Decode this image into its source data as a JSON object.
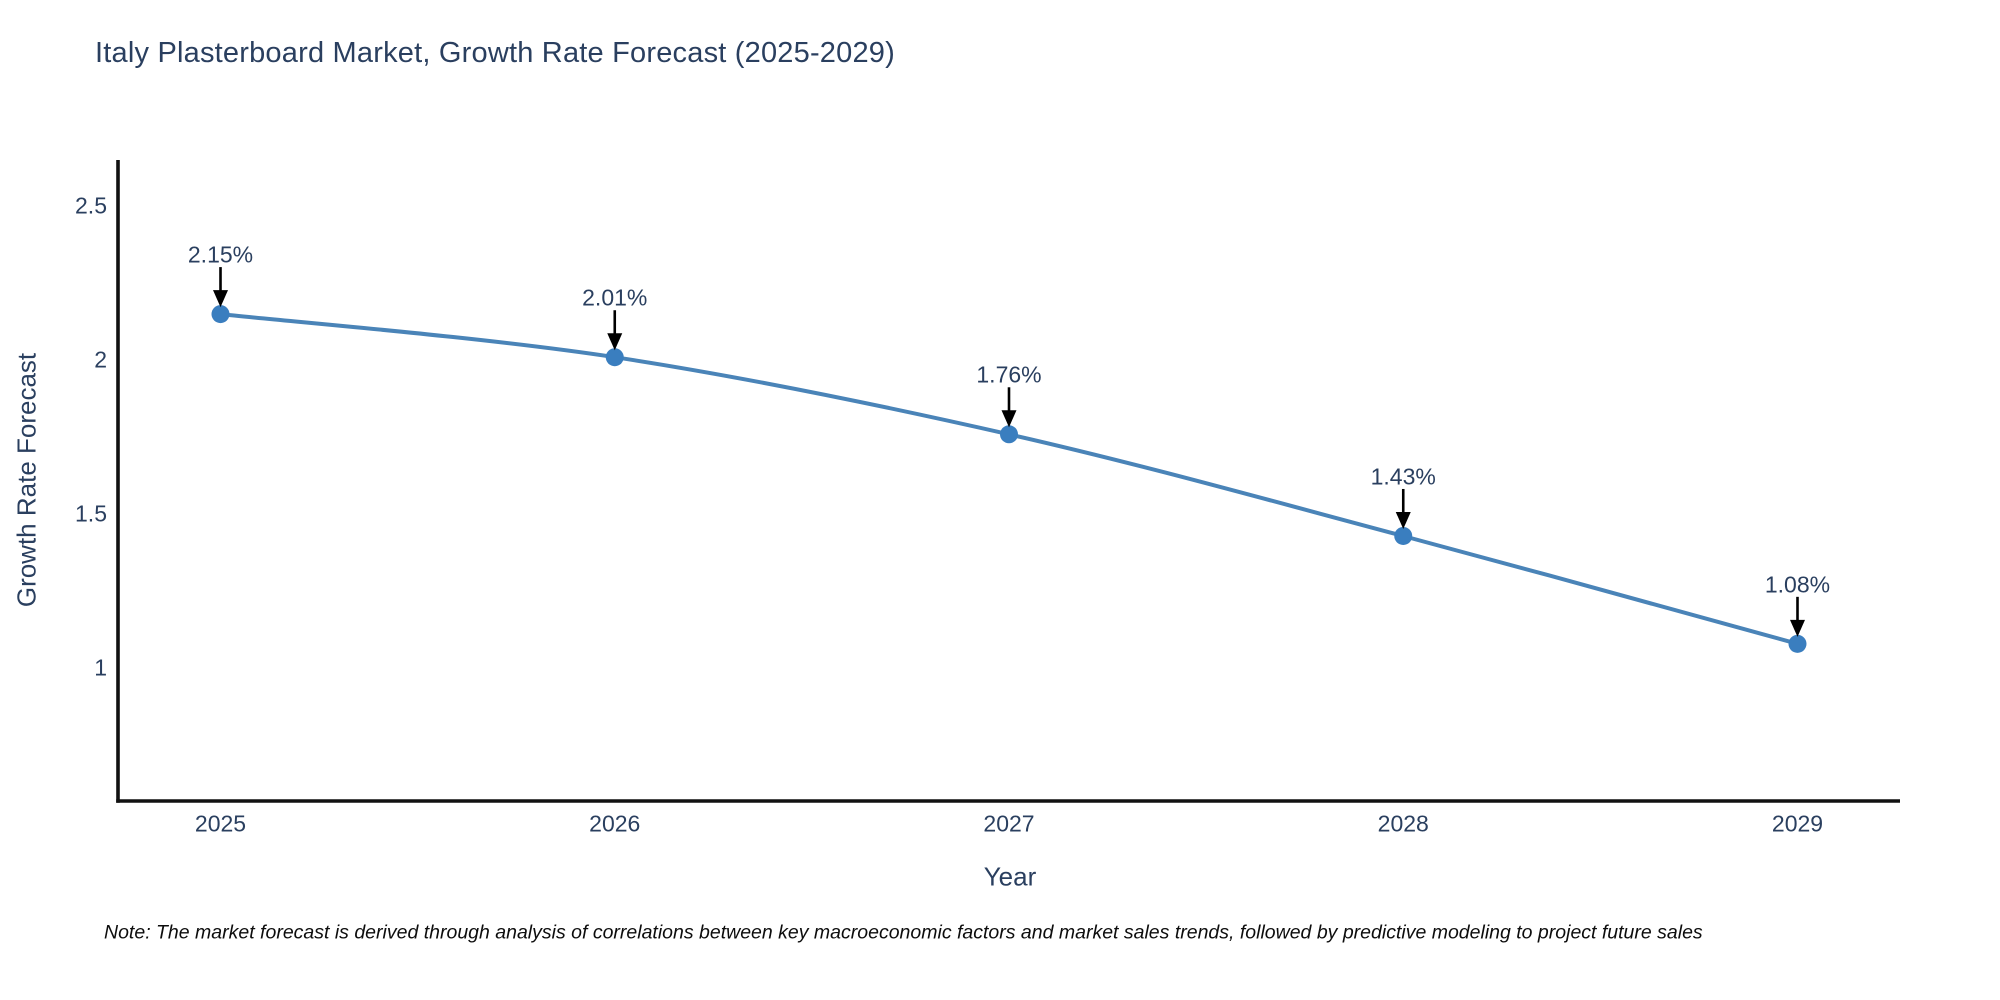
{
  "chart_data": {
    "type": "line",
    "title": "Italy Plasterboard Market, Growth Rate Forecast (2025-2029)",
    "xlabel": "Year",
    "ylabel": "Growth Rate Forecast",
    "x": [
      2025,
      2026,
      2027,
      2028,
      2029
    ],
    "xtick_labels": [
      "2025",
      "2026",
      "2027",
      "2028",
      "2029"
    ],
    "ytick_values": [
      2.5,
      2,
      1.5,
      1
    ],
    "ytick_labels": [
      "2.5",
      "2",
      "1.5",
      "1"
    ],
    "series": [
      {
        "name": "Growth Rate Forecast",
        "values": [
          2.15,
          2.01,
          1.76,
          1.43,
          1.08
        ]
      }
    ],
    "point_labels": [
      "2.15%",
      "2.01%",
      "1.76%",
      "1.43%",
      "1.08%"
    ],
    "xlim": [
      2024.74,
      2029.26
    ],
    "ylim": [
      0.57,
      2.65
    ],
    "grid": false,
    "legend": "none",
    "colors": {
      "line": "#4a84b8",
      "marker": "#3a7ebf",
      "axis": "#111111",
      "text": "#2a3f5f",
      "annotation_arrow": "#000000"
    },
    "note": "Note: The market forecast is derived through analysis of correlations between key macroeconomic factors and market sales trends, followed by predictive modeling to project future sales"
  }
}
